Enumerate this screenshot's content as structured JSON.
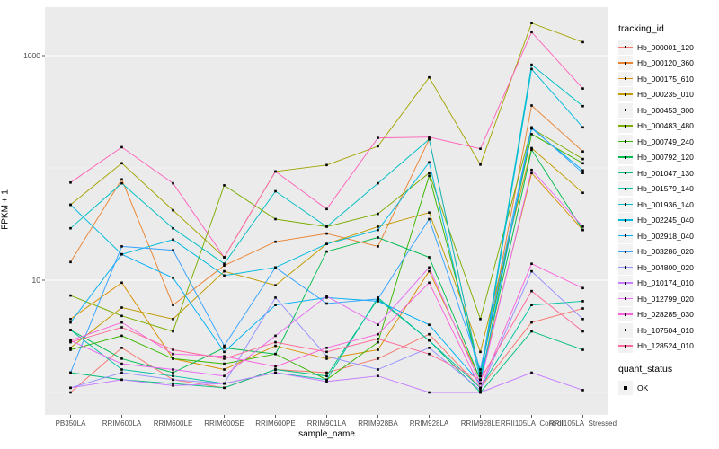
{
  "figure": {
    "background": "#FFFFFF",
    "panel_background": "#EBEBEB",
    "grid_color": "#FFFFFF",
    "tick_color": "#333333",
    "tick_label_color": "#4D4D4D",
    "point_color": "#000000"
  },
  "axes": {
    "x_title": "sample_name",
    "y_title": "FPKM + 1",
    "y_tick_labels": [
      "10",
      "1000"
    ],
    "y_tick_values": [
      10,
      1000
    ],
    "y_minor_values": [
      1,
      100
    ]
  },
  "legend": {
    "tracking_title": "tracking_id",
    "quant_title": "quant_status",
    "quant_items": [
      {
        "label": "OK"
      }
    ]
  },
  "chart_data": {
    "type": "line",
    "title": "",
    "xlabel": "sample_name",
    "ylabel": "FPKM + 1",
    "y_scale": "log10",
    "ylim": [
      0.63,
      2700
    ],
    "grid": true,
    "legend_position": "right",
    "categories": [
      "PB350LA",
      "RRIM600LA",
      "RRIM600LE",
      "RRIM600SE",
      "RRIM600PE",
      "RRIM901LA",
      "RRIM928BA",
      "RRIM928LA",
      "RRIM928LE",
      "RRII105LA_Control",
      "RRII105LA_Stressed"
    ],
    "series": [
      {
        "name": "Hb_000001_120",
        "color": "#F8766D",
        "values": [
          1.0,
          2.5,
          1.3,
          1.1,
          1.6,
          1.5,
          2.0,
          3.3,
          1.1,
          4.2,
          5.6
        ]
      },
      {
        "name": "Hb_000120_360",
        "color": "#EA8331",
        "values": [
          14.5,
          79,
          6.0,
          13.5,
          22,
          26,
          20,
          180,
          1.4,
          360,
          140
        ]
      },
      {
        "name": "Hb_000175_610",
        "color": "#D89000",
        "values": [
          4.5,
          9.5,
          2.0,
          1.6,
          2.6,
          2.0,
          2.4,
          12,
          1.3,
          90,
          28
        ]
      },
      {
        "name": "Hb_000235_010",
        "color": "#C09B00",
        "values": [
          2.5,
          5.7,
          4.5,
          12,
          9,
          21,
          30,
          40,
          2.3,
          150,
          60
        ]
      },
      {
        "name": "Hb_000453_300",
        "color": "#A3A500",
        "values": [
          47,
          110,
          42,
          16,
          93,
          106,
          156,
          640,
          107,
          1950,
          1320
        ]
      },
      {
        "name": "Hb_000483_480",
        "color": "#7CAE00",
        "values": [
          7.3,
          4.8,
          3.5,
          70,
          35,
          30,
          39,
          90,
          4.5,
          225,
          120
        ]
      },
      {
        "name": "Hb_000749_240",
        "color": "#39B600",
        "values": [
          2.4,
          3.2,
          2.0,
          1.8,
          2.2,
          1.3,
          2.8,
          85,
          1.5,
          200,
          110
        ]
      },
      {
        "name": "Hb_000792_120",
        "color": "#00BB4E",
        "values": [
          3.6,
          2.0,
          1.5,
          2.5,
          2.2,
          18,
          24,
          16,
          1.3,
          145,
          28
        ]
      },
      {
        "name": "Hb_001047_130",
        "color": "#00BF7D",
        "values": [
          1.5,
          1.3,
          1.2,
          1.1,
          1.6,
          1.4,
          6.8,
          2.9,
          1.0,
          3.5,
          2.4
        ]
      },
      {
        "name": "Hb_001579_140",
        "color": "#00C1A3",
        "values": [
          3.6,
          1.6,
          1.4,
          1.2,
          1.5,
          1.3,
          7.0,
          2.9,
          1.1,
          6.0,
          6.5
        ]
      },
      {
        "name": "Hb_001936_140",
        "color": "#00BFC4",
        "values": [
          29,
          73,
          29,
          14,
          62,
          30,
          73,
          180,
          1.4,
          830,
          355
        ]
      },
      {
        "name": "Hb_002245_040",
        "color": "#00BAE0",
        "values": [
          47,
          17,
          23,
          11,
          13,
          21,
          28,
          112,
          1.3,
          760,
          230
        ]
      },
      {
        "name": "Hb_002918_040",
        "color": "#00B0F6",
        "values": [
          4.2,
          17,
          10.5,
          2.3,
          6.0,
          7.0,
          6.5,
          4.0,
          1.2,
          225,
          95
        ]
      },
      {
        "name": "Hb_003286_020",
        "color": "#35A2FF",
        "values": [
          1.5,
          20,
          18.5,
          2.6,
          13,
          6.2,
          6.8,
          35,
          1.6,
          230,
          90
        ]
      },
      {
        "name": "Hb_004800_020",
        "color": "#9590FF",
        "values": [
          1.1,
          1.5,
          1.3,
          1.2,
          7.0,
          2.1,
          1.6,
          2.5,
          1.05,
          12,
          4.5
        ]
      },
      {
        "name": "Hb_010174_010",
        "color": "#C77CFF",
        "values": [
          1.1,
          1.3,
          1.15,
          1.2,
          1.5,
          1.25,
          1.4,
          1.0,
          1.0,
          1.5,
          1.05
        ]
      },
      {
        "name": "Hb_012799_020",
        "color": "#E76BF3",
        "values": [
          2.9,
          1.8,
          1.6,
          1.4,
          3.2,
          7.2,
          4.0,
          13,
          1.2,
          96,
          30
        ]
      },
      {
        "name": "Hb_028285_030",
        "color": "#FA62DB",
        "values": [
          2.9,
          4.2,
          2.2,
          2.1,
          1.7,
          2.5,
          3.3,
          9.5,
          1.1,
          14,
          8.5
        ]
      },
      {
        "name": "Hb_107504_010",
        "color": "#FF62BC",
        "values": [
          74,
          153,
          73,
          16,
          93,
          43,
          185,
          188,
          148,
          1620,
          510
        ]
      },
      {
        "name": "Hb_128524_010",
        "color": "#FF6A98",
        "values": [
          2.8,
          3.8,
          2.4,
          2.0,
          2.8,
          2.3,
          3.0,
          2.2,
          1.3,
          8.0,
          3.5
        ]
      }
    ]
  }
}
